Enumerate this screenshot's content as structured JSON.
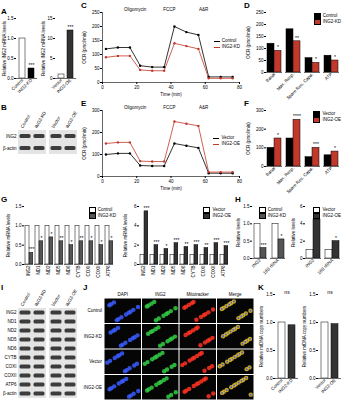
{
  "chart_data": [
    {
      "title": "A",
      "type": "bar",
      "categories": [
        "Control",
        "ING2-KD"
      ],
      "values": [
        1,
        0.25
      ],
      "colors": [
        "#ffffff",
        "#000000"
      ],
      "ylabel": "Relative ING2 mRNA levels",
      "ylim": [
        0,
        1.5
      ],
      "yticks": [
        {
          "value": 0,
          "label": "0.0"
        },
        {
          "value": 0.5,
          "label": "0.5"
        },
        {
          "value": 1,
          "label": "1.0"
        },
        {
          "value": 1.5,
          "label": "1.5"
        }
      ],
      "annotations": [
        {
          "category": "ING2-KD",
          "text": "***"
        }
      ]
    },
    {
      "type": "bar",
      "categories": [
        "Vector",
        "ING2-OE"
      ],
      "values": [
        1,
        12
      ],
      "colors": [
        "#ffffff",
        "#333333"
      ],
      "ylabel": "Relative ING2 mRNA levels",
      "ylim": [
        0,
        15
      ],
      "yticks": [
        0,
        5,
        10,
        15
      ],
      "annotations": [
        {
          "category": "ING2-OE",
          "text": "***"
        }
      ]
    },
    {
      "title": "C",
      "type": "line",
      "x": [
        2,
        9,
        16,
        22,
        29,
        36,
        42,
        49,
        56,
        62,
        69,
        76
      ],
      "xlabel": "Time (min)",
      "xlim": [
        0,
        80
      ],
      "xticks": [
        0,
        20,
        40,
        60,
        80
      ],
      "ylabel": "OCR (pmol/min)",
      "ylim": [
        0,
        250
      ],
      "yticks": [
        0,
        50,
        100,
        150,
        200,
        250
      ],
      "series": [
        {
          "name": "Control",
          "color": "#000000",
          "marker": "circle",
          "values": [
            120,
            125,
            125,
            60,
            55,
            55,
            200,
            180,
            170,
            20,
            20,
            20
          ]
        },
        {
          "name": "ING2-KD",
          "color": "#c0392b",
          "marker": "circle",
          "values": [
            90,
            95,
            95,
            45,
            42,
            42,
            140,
            130,
            120,
            15,
            15,
            15
          ]
        }
      ],
      "legend": "right",
      "annotations": [
        {
          "x": 19,
          "text": "Oligomycin"
        },
        {
          "x": 39,
          "text": "FCCP"
        },
        {
          "x": 59,
          "text": "A&R"
        }
      ]
    },
    {
      "title": "D",
      "type": "bar",
      "categories": [
        "Basal",
        "Max. Resp.",
        "Spare Res. Capa.",
        "ATP"
      ],
      "series": [
        {
          "name": "Control",
          "color": "#000000",
          "values": [
            120,
            180,
            60,
            70
          ]
        },
        {
          "name": "ING2-KD",
          "color": "#c0392b",
          "values": [
            90,
            130,
            40,
            50
          ]
        }
      ],
      "ylabel": "OCR (pmol/min)",
      "ylim": [
        0,
        250
      ],
      "yticks": [
        0,
        50,
        100,
        150,
        200,
        250
      ],
      "legend": "top-right",
      "annotations": [
        {
          "category": "Basal",
          "series": "ING2-KD",
          "text": "*"
        },
        {
          "category": "Max. Resp.",
          "series": "ING2-KD",
          "text": "**"
        },
        {
          "category": "Spare Res. Capa.",
          "series": "ING2-KD",
          "text": "*"
        },
        {
          "category": "ATP",
          "series": "ING2-KD",
          "text": "*"
        }
      ]
    },
    {
      "title": "E",
      "type": "line",
      "x": [
        2,
        9,
        16,
        22,
        29,
        36,
        42,
        49,
        56,
        62,
        69,
        76
      ],
      "xlabel": "Time (min)",
      "xlim": [
        0,
        80
      ],
      "xticks": [
        0,
        20,
        40,
        60,
        80
      ],
      "ylabel": "OCR (pmol/min)",
      "ylim": [
        0,
        300
      ],
      "yticks": [
        0,
        100,
        200,
        300
      ],
      "series": [
        {
          "name": "Vector",
          "color": "#000000",
          "marker": "circle",
          "values": [
            100,
            105,
            105,
            50,
            48,
            48,
            150,
            140,
            130,
            15,
            15,
            15
          ]
        },
        {
          "name": "ING2-OE",
          "color": "#c0392b",
          "marker": "circle",
          "values": [
            150,
            155,
            155,
            70,
            68,
            68,
            250,
            240,
            230,
            20,
            20,
            20
          ]
        }
      ],
      "legend": "right",
      "annotations": [
        {
          "x": 19,
          "text": "Oligomycin"
        },
        {
          "x": 39,
          "text": "FCCP"
        },
        {
          "x": 59,
          "text": "A&R"
        }
      ]
    },
    {
      "title": "F",
      "type": "bar",
      "categories": [
        "Basal",
        "Max. Resp.",
        "Spare Res. Capa.",
        "ATP"
      ],
      "series": [
        {
          "name": "Vector",
          "color": "#000000",
          "values": [
            100,
            150,
            50,
            60
          ]
        },
        {
          "name": "ING2-OE",
          "color": "#c0392b",
          "values": [
            150,
            250,
            100,
            80
          ]
        }
      ],
      "ylabel": "OCR (pmol/min)",
      "ylim": [
        0,
        300
      ],
      "yticks": [
        0,
        100,
        200,
        300
      ],
      "legend": "top-right",
      "annotations": [
        {
          "category": "Basal",
          "series": "ING2-OE",
          "text": "*"
        },
        {
          "category": "Max. Resp.",
          "series": "ING2-OE",
          "text": "****"
        },
        {
          "category": "Spare Res. Capa.",
          "series": "ING2-OE",
          "text": "***"
        },
        {
          "category": "ATP",
          "series": "ING2-OE",
          "text": "*"
        }
      ]
    },
    {
      "title": "G",
      "type": "bar",
      "categories": [
        "ING2",
        "ND1",
        "ND2",
        "ND5",
        "ND6",
        "CYTB",
        "COXI",
        "COXII",
        "ATP6"
      ],
      "series": [
        {
          "name": "Control",
          "color": "#ffffff",
          "values": [
            1,
            1,
            1,
            1,
            1,
            1,
            1,
            1,
            1
          ]
        },
        {
          "name": "ING2-KD",
          "color": "#555555",
          "values": [
            0.3,
            0.6,
            0.7,
            0.6,
            0.5,
            0.6,
            0.6,
            0.5,
            0.6
          ]
        }
      ],
      "ylabel": "Relative mRNA levels",
      "ylim": [
        0,
        1.5
      ],
      "yticks": [
        {
          "value": 0,
          "label": "0.0"
        },
        {
          "value": 0.5,
          "label": "0.5"
        },
        {
          "value": 1,
          "label": "1.0"
        },
        {
          "value": 1.5,
          "label": "1.5"
        }
      ],
      "legend": "top-right",
      "annotations": [
        {
          "category": "ING2",
          "series": "ING2-KD",
          "text": "***"
        },
        {
          "category": "ND1",
          "series": "ING2-KD",
          "text": "*"
        },
        {
          "category": "ND2",
          "series": "ING2-KD",
          "text": "*"
        },
        {
          "category": "ND5",
          "series": "ING2-KD",
          "text": "**"
        },
        {
          "category": "ND6",
          "series": "ING2-KD",
          "text": "*"
        },
        {
          "category": "CYTB",
          "series": "ING2-KD",
          "text": "**"
        },
        {
          "category": "COXI",
          "series": "ING2-KD",
          "text": "*"
        },
        {
          "category": "COXII",
          "series": "ING2-KD",
          "text": "*"
        },
        {
          "category": "ATP6",
          "series": "ING2-KD",
          "text": "*"
        }
      ]
    },
    {
      "type": "bar",
      "categories": [
        "ING2",
        "ND1",
        "ND2",
        "ND5",
        "ND6",
        "CYTB",
        "COXI",
        "COXII",
        "ATP6"
      ],
      "series": [
        {
          "name": "Vector",
          "color": "#ffffff",
          "values": [
            1,
            1,
            1,
            1,
            1,
            1,
            1,
            1,
            1
          ]
        },
        {
          "name": "ING2-OE",
          "color": "#333333",
          "values": [
            5.5,
            2,
            1.6,
            2.2,
            1.8,
            2,
            1.7,
            2.2,
            1.9
          ]
        }
      ],
      "ylabel": "Relative mRNA levels",
      "ylim": [
        0,
        6
      ],
      "yticks": [
        0,
        2,
        4,
        6
      ],
      "legend": "top-right",
      "annotations": [
        {
          "category": "ING2",
          "series": "ING2-OE",
          "text": "***"
        },
        {
          "category": "ND1",
          "series": "ING2-OE",
          "text": "***"
        },
        {
          "category": "ND2",
          "series": "ING2-OE",
          "text": "*"
        },
        {
          "category": "ND5",
          "series": "ING2-OE",
          "text": "***"
        },
        {
          "category": "ND6",
          "series": "ING2-OE",
          "text": "**"
        },
        {
          "category": "CYTB",
          "series": "ING2-OE",
          "text": "***"
        },
        {
          "category": "COXI",
          "series": "ING2-OE",
          "text": "**"
        },
        {
          "category": "COXII",
          "series": "ING2-OE",
          "text": "***"
        },
        {
          "category": "ATP6",
          "series": "ING2-OE",
          "text": "***"
        }
      ]
    },
    {
      "title": "H",
      "type": "bar",
      "categories": [
        "ING2",
        "16S rRNA"
      ],
      "series": [
        {
          "name": "Control",
          "color": "#ffffff",
          "values": [
            1,
            1
          ]
        },
        {
          "name": "ING2-KD",
          "color": "#555555",
          "values": [
            0.3,
            0.55
          ]
        }
      ],
      "ylabel": "Relative levels",
      "ylim": [
        0,
        1.5
      ],
      "yticks": [
        {
          "value": 0,
          "label": "0.0"
        },
        {
          "value": 0.5,
          "label": "0.5"
        },
        {
          "value": 1,
          "label": "1.0"
        },
        {
          "value": 1.5,
          "label": "1.5"
        }
      ],
      "legend": "top-right",
      "annotations": [
        {
          "category": "ING2",
          "series": "ING2-KD",
          "text": "***"
        },
        {
          "category": "16S rRNA",
          "series": "ING2-KD",
          "text": "*"
        }
      ]
    },
    {
      "type": "bar",
      "categories": [
        "ING2",
        "16S rRNA"
      ],
      "series": [
        {
          "name": "Vector",
          "color": "#ffffff",
          "values": [
            1,
            1
          ]
        },
        {
          "name": "ING2-OE",
          "color": "#333333",
          "values": [
            4.5,
            2
          ]
        }
      ],
      "ylabel": "Relative levels",
      "ylim": [
        0,
        6
      ],
      "yticks": [
        0,
        2,
        4,
        6
      ],
      "legend": "top-right",
      "annotations": [
        {
          "category": "ING2",
          "series": "ING2-OE",
          "text": "**"
        },
        {
          "category": "16S rRNA",
          "series": "ING2-OE",
          "text": "*"
        }
      ]
    },
    {
      "title": "K",
      "type": "bar",
      "categories": [
        "Control",
        "ING2-KD"
      ],
      "values": [
        1,
        0.95
      ],
      "colors": [
        "#ffffff",
        "#333333"
      ],
      "ylabel": "Relative mtDNA copy numbers",
      "ylim": [
        0,
        1.5
      ],
      "yticks": [
        {
          "value": 0,
          "label": "0.0"
        },
        {
          "value": 0.5,
          "label": "0.5"
        },
        {
          "value": 1,
          "label": "1.0"
        },
        {
          "value": 1.5,
          "label": "1.5"
        }
      ],
      "annotations": [
        {
          "text": "ns"
        }
      ]
    },
    {
      "type": "bar",
      "categories": [
        "Vector",
        "ING2-OE"
      ],
      "values": [
        1,
        0.97
      ],
      "colors": [
        "#ffffff",
        "#333333"
      ],
      "ylabel": "Relative mtDNA copy numbers",
      "ylim": [
        0,
        1.5
      ],
      "yticks": [
        {
          "value": 0,
          "label": "0.0"
        },
        {
          "value": 0.5,
          "label": "0.5"
        },
        {
          "value": 1,
          "label": "1.0"
        },
        {
          "value": 1.5,
          "label": "1.5"
        }
      ],
      "annotations": [
        {
          "text": "ns"
        }
      ]
    }
  ],
  "blots": [
    {
      "title": "B",
      "groups": [
        {
          "lanes": [
            "Control",
            "ING2-KD"
          ]
        },
        {
          "lanes": [
            "Vector",
            "ING2-OE"
          ]
        }
      ],
      "rows": [
        "ING2",
        "β-actin"
      ]
    },
    {
      "title": "I",
      "groups": [
        {
          "lanes": [
            "Control",
            "ING2-KD"
          ]
        },
        {
          "lanes": [
            "Vector",
            "ING2-OE"
          ]
        }
      ],
      "rows": [
        "ING2",
        "ND1",
        "ND2",
        "ND5",
        "ND6",
        "CYTB",
        "COXI",
        "COXII",
        "ATP6",
        "β-actin"
      ]
    }
  ],
  "images": {
    "title": "J",
    "columns": [
      "DAPI",
      "ING2",
      "Mitotracker",
      "Merge"
    ],
    "rows": [
      "Control",
      "ING2-KD",
      "Vector",
      "ING2-OE"
    ]
  }
}
